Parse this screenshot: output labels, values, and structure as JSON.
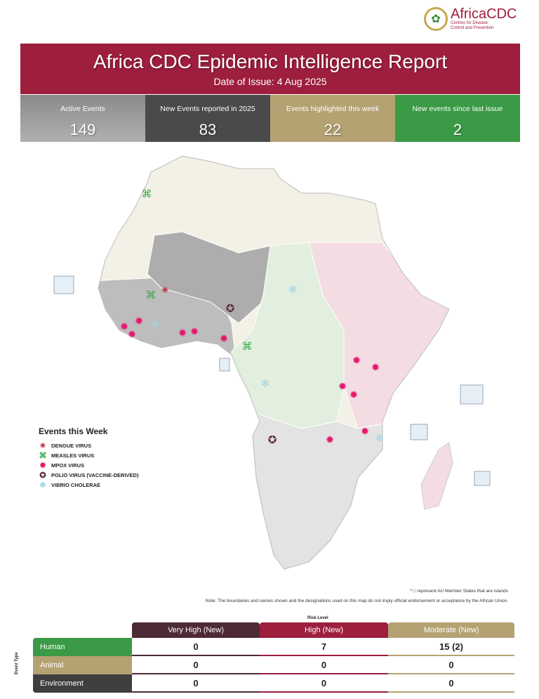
{
  "logo": {
    "name": "AfricaCDC",
    "subtitle": "Centres for Disease Control and Prevention"
  },
  "header": {
    "title": "Africa CDC Epidemic Intelligence Report",
    "date": "Date of Issue: 4 Aug 2025"
  },
  "stats": [
    {
      "label": "Active Events",
      "value": "149",
      "color": "#9a9a9a"
    },
    {
      "label": "New Events reported in 2025",
      "value": "83",
      "color": "#4a4a4a"
    },
    {
      "label": "Events highlighted this week",
      "value": "22",
      "color": "#b5a272"
    },
    {
      "label": "New events since last issue",
      "value": "2",
      "color": "#3a9a45"
    }
  ],
  "legend": {
    "title": "Events this Week",
    "items": [
      {
        "label": "DENGUE VIRUS",
        "icon": "dengue-icon",
        "color": "#c0404f"
      },
      {
        "label": "MEASLES VIRUS",
        "icon": "measles-icon",
        "color": "#3aa84a"
      },
      {
        "label": "MPOX VIRUS",
        "icon": "mpox-icon",
        "color": "#e8186e"
      },
      {
        "label": "POLIO VIRUS (VACCINE-DERIVED)",
        "icon": "polio-icon",
        "color": "#5a2a3a"
      },
      {
        "label": "VIBRIO CHOLERAE",
        "icon": "cholera-icon",
        "color": "#9fd0e8"
      }
    ]
  },
  "notes": {
    "islands": "* □ represent AU Member States that are islands",
    "disclaimer": "Note: The boundaries and names shown and the designations used on this map do not imply official endorsement or acceptance by the African Union."
  },
  "risk_table": {
    "title": "Risk Level",
    "row_axis": "Event Type",
    "columns": [
      {
        "label": "Very High (New)",
        "color": "#4e2a35"
      },
      {
        "label": "High (New)",
        "color": "#9e1e3d"
      },
      {
        "label": "Moderate (New)",
        "color": "#b5a272"
      }
    ],
    "rows": [
      {
        "label": "Human",
        "color": "#3a9a45",
        "values": [
          "0",
          "7",
          "15 (2)"
        ]
      },
      {
        "label": "Animal",
        "color": "#b5a272",
        "values": [
          "0",
          "0",
          "0"
        ]
      },
      {
        "label": "Environment",
        "color": "#3e3e3e",
        "values": [
          "0",
          "0",
          "0"
        ]
      }
    ]
  }
}
